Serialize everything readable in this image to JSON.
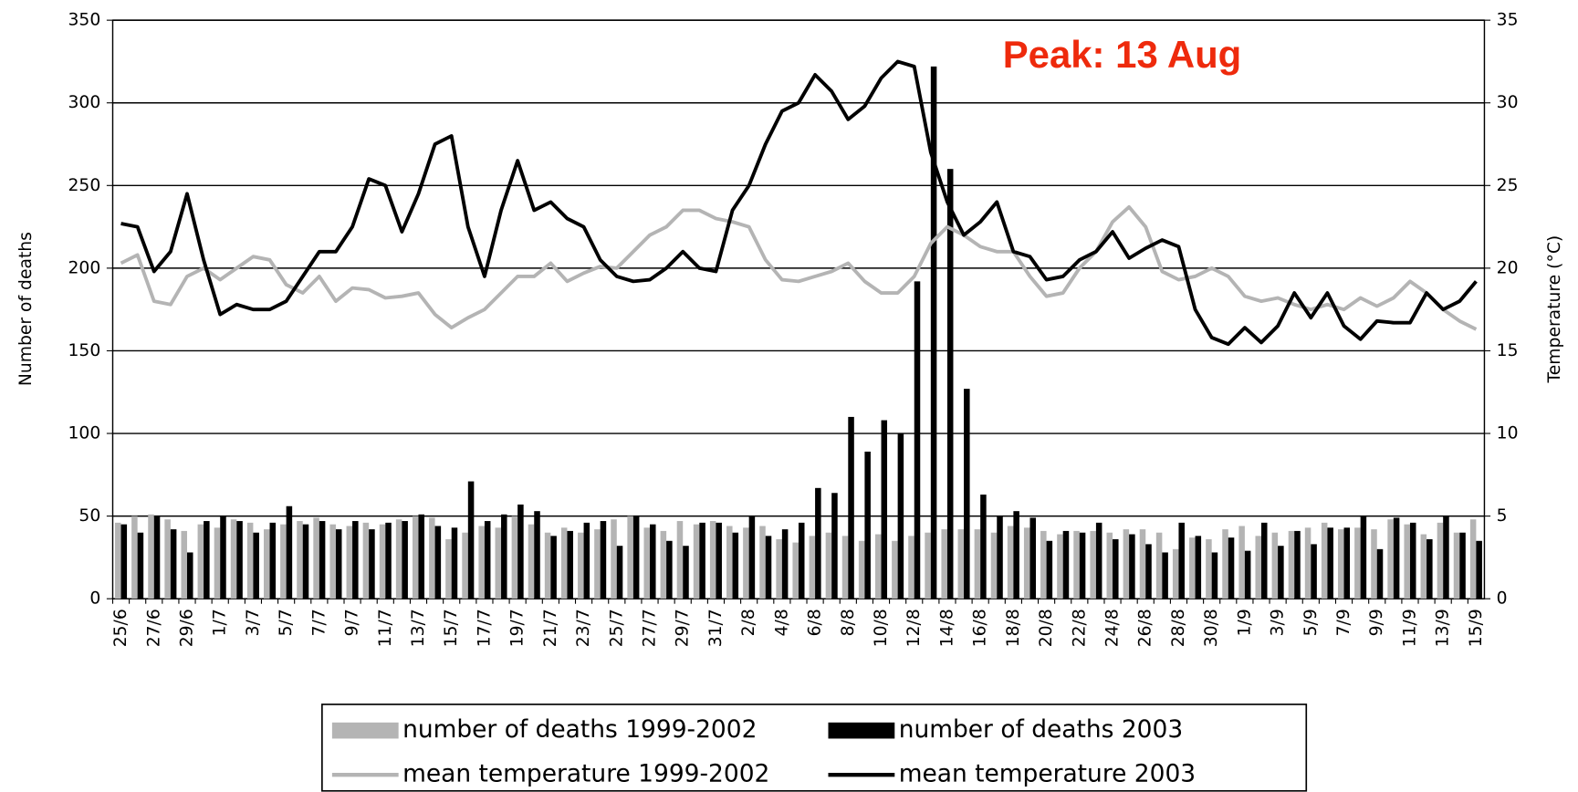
{
  "chart_data": {
    "type": "combo",
    "annotation": "Peak: 13 Aug",
    "ylabel": "Number of deaths",
    "y2label": "Temperature (°C)",
    "categories": [
      "25/6",
      null,
      "27/6",
      null,
      "29/6",
      null,
      "1/7",
      null,
      "3/7",
      null,
      "5/7",
      null,
      "7/7",
      null,
      "9/7",
      null,
      "11/7",
      null,
      "13/7",
      null,
      "15/7",
      null,
      "17/7",
      null,
      "19/7",
      null,
      "21/7",
      null,
      "23/7",
      null,
      "25/7",
      null,
      "27/7",
      null,
      "29/7",
      null,
      "31/7",
      null,
      "2/8",
      null,
      "4/8",
      null,
      "6/8",
      null,
      "8/8",
      null,
      "10/8",
      null,
      "12/8",
      null,
      "14/8",
      null,
      "16/8",
      null,
      "18/8",
      null,
      "20/8",
      null,
      "22/8",
      null,
      "24/8",
      null,
      "26/8",
      null,
      "28/8",
      null,
      "30/8",
      null,
      "1/9",
      null,
      "3/9",
      null,
      "5/9",
      null,
      "7/9",
      null,
      "9/9",
      null,
      "11/9",
      null,
      "13/9",
      null,
      "15/9"
    ],
    "ylim": [
      0,
      350
    ],
    "yticks": [
      0,
      50,
      100,
      150,
      200,
      250,
      300,
      350
    ],
    "y2lim": [
      0,
      35
    ],
    "y2ticks": [
      0,
      5,
      10,
      15,
      20,
      25,
      30,
      35
    ],
    "grid": true,
    "series": [
      {
        "name": "number of deaths 1999-2002",
        "type": "bar",
        "color": "#b4b4b4",
        "values": [
          46,
          50,
          51,
          48,
          41,
          45,
          43,
          48,
          46,
          42,
          45,
          47,
          49,
          45,
          44,
          46,
          45,
          48,
          50,
          49,
          36,
          40,
          44,
          43,
          50,
          45,
          40,
          43,
          40,
          42,
          48,
          50,
          43,
          41,
          47,
          45,
          47,
          44,
          43,
          44,
          36,
          34,
          38,
          40,
          38,
          35,
          39,
          35,
          38,
          40,
          42,
          42,
          42,
          40,
          44,
          43,
          41,
          39,
          41,
          41,
          40,
          42,
          42,
          40,
          30,
          37,
          36,
          42,
          44,
          38,
          40,
          41,
          43,
          46,
          42,
          43,
          42,
          48,
          45,
          39,
          46,
          40,
          48
        ]
      },
      {
        "name": "number of deaths 2003",
        "type": "bar",
        "color": "#000000",
        "values": [
          45,
          40,
          50,
          42,
          28,
          47,
          50,
          47,
          40,
          46,
          56,
          45,
          47,
          42,
          47,
          42,
          46,
          47,
          51,
          44,
          43,
          71,
          47,
          51,
          57,
          53,
          38,
          41,
          46,
          47,
          32,
          50,
          45,
          35,
          32,
          46,
          46,
          40,
          50,
          38,
          42,
          46,
          67,
          64,
          110,
          89,
          108,
          100,
          192,
          322,
          260,
          127,
          63,
          50,
          53,
          49,
          35,
          41,
          40,
          46,
          36,
          39,
          33,
          28,
          46,
          38,
          28,
          37,
          29,
          46,
          32,
          41,
          33,
          43,
          43,
          50,
          30,
          49,
          46,
          36,
          50,
          40,
          35
        ]
      },
      {
        "name": "mean temperature 1999-2002",
        "type": "line",
        "axis": "y2",
        "color": "#b4b4b4",
        "values": [
          20.3,
          20.8,
          18,
          17.8,
          19.5,
          20,
          19.3,
          20,
          20.7,
          20.5,
          19,
          18.5,
          19.5,
          18,
          18.8,
          18.7,
          18.2,
          18.3,
          18.5,
          17.2,
          16.4,
          17,
          17.5,
          18.5,
          19.5,
          19.5,
          20.3,
          19.2,
          19.7,
          20.1,
          20,
          21,
          22,
          22.5,
          23.5,
          23.5,
          23,
          22.8,
          22.5,
          20.5,
          19.3,
          19.2,
          19.5,
          19.8,
          20.3,
          19.2,
          18.5,
          18.5,
          19.5,
          21.5,
          22.5,
          22,
          21.3,
          21,
          21,
          19.5,
          18.3,
          18.5,
          20,
          21,
          22.8,
          23.7,
          22.5,
          19.8,
          19.3,
          19.5,
          20,
          19.5,
          18.3,
          18,
          18.2,
          17.8,
          17.5,
          17.8,
          17.5,
          18.2,
          17.7,
          18.2,
          19.2,
          18.5,
          17.5,
          16.8,
          16.3
        ]
      },
      {
        "name": "mean temperature 2003",
        "type": "line",
        "axis": "y2",
        "color": "#000000",
        "values": [
          22.7,
          22.5,
          19.8,
          21,
          24.5,
          20.5,
          17.2,
          17.8,
          17.5,
          17.5,
          18,
          19.5,
          21,
          21,
          22.5,
          25.4,
          25,
          22.2,
          24.5,
          27.5,
          28,
          22.5,
          19.5,
          23.5,
          26.5,
          23.5,
          24,
          23,
          22.5,
          20.5,
          19.5,
          19.2,
          19.3,
          20,
          21,
          20,
          19.8,
          23.5,
          25,
          27.5,
          29.5,
          30,
          31.7,
          30.7,
          29,
          29.8,
          31.5,
          32.5,
          32.2,
          27,
          24,
          22,
          22.8,
          24,
          21,
          20.7,
          19.3,
          19.5,
          20.5,
          21,
          22.2,
          20.6,
          21.2,
          21.7,
          21.3,
          17.5,
          15.8,
          15.4,
          16.4,
          15.5,
          16.5,
          18.5,
          17,
          18.5,
          16.5,
          15.7,
          16.8,
          16.7,
          16.7,
          18.5,
          17.5,
          18,
          19.2
        ]
      }
    ]
  }
}
